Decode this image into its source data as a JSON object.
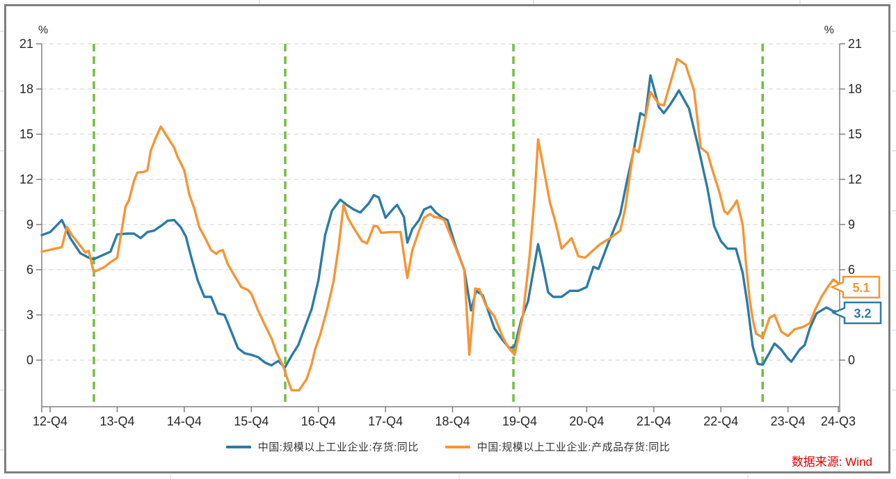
{
  "chart_data": {
    "type": "line",
    "title": "",
    "unit_left": "%",
    "unit_right": "%",
    "ylim": [
      -3,
      21
    ],
    "y_ticks": [
      21,
      18,
      15,
      12,
      9,
      6,
      3,
      0
    ],
    "grid": "horizontal-dashed",
    "legend_position": "bottom-center",
    "x_ticks": [
      {
        "q": 0,
        "label": "12-Q4"
      },
      {
        "q": 4,
        "label": "13-Q4"
      },
      {
        "q": 8,
        "label": "14-Q4"
      },
      {
        "q": 12,
        "label": "15-Q4"
      },
      {
        "q": 16,
        "label": "16-Q4"
      },
      {
        "q": 20,
        "label": "17-Q4"
      },
      {
        "q": 24,
        "label": "18-Q4"
      },
      {
        "q": 28,
        "label": "19-Q4"
      },
      {
        "q": 32,
        "label": "20-Q4"
      },
      {
        "q": 36,
        "label": "21-Q4"
      },
      {
        "q": 40,
        "label": "22-Q4"
      },
      {
        "q": 44,
        "label": "23-Q4"
      },
      {
        "q": 47,
        "label": "24-Q3"
      }
    ],
    "event_lines": {
      "color": "#70bf41",
      "style": "dashed",
      "positions_q": [
        2.61,
        14.02,
        27.63,
        42.49
      ]
    },
    "series": [
      {
        "name": "中国:规模以上工业企业:存货:同比",
        "color": "#2b7ba6",
        "end_label": "3.2",
        "points": [
          [
            -0.5,
            8.3
          ],
          [
            0,
            8.5
          ],
          [
            0.7,
            9.3
          ],
          [
            1.2,
            8.1
          ],
          [
            1.8,
            7.1
          ],
          [
            2.3,
            6.8
          ],
          [
            2.6,
            6.7
          ],
          [
            3.2,
            7.0
          ],
          [
            3.6,
            7.2
          ],
          [
            4,
            8.35
          ],
          [
            4.6,
            8.4
          ],
          [
            5,
            8.4
          ],
          [
            5.4,
            8.1
          ],
          [
            5.8,
            8.5
          ],
          [
            6.2,
            8.6
          ],
          [
            6.6,
            8.9
          ],
          [
            7,
            9.25
          ],
          [
            7.4,
            9.3
          ],
          [
            7.8,
            8.8
          ],
          [
            8.1,
            8.2
          ],
          [
            8.4,
            6.9
          ],
          [
            8.8,
            5.3
          ],
          [
            9.2,
            4.2
          ],
          [
            9.6,
            4.2
          ],
          [
            10,
            3.1
          ],
          [
            10.4,
            3.0
          ],
          [
            10.8,
            1.9
          ],
          [
            11.2,
            0.8
          ],
          [
            11.6,
            0.45
          ],
          [
            12,
            0.35
          ],
          [
            12.4,
            0.2
          ],
          [
            12.8,
            -0.15
          ],
          [
            13.2,
            -0.35
          ],
          [
            13.6,
            -0.05
          ],
          [
            14,
            -0.5
          ],
          [
            14.4,
            0.3
          ],
          [
            14.8,
            1.0
          ],
          [
            15.2,
            2.2
          ],
          [
            15.6,
            3.4
          ],
          [
            16,
            5.3
          ],
          [
            16.4,
            8.3
          ],
          [
            16.8,
            9.9
          ],
          [
            17.3,
            10.65
          ],
          [
            17.7,
            10.3
          ],
          [
            18.1,
            10.0
          ],
          [
            18.5,
            9.8
          ],
          [
            19,
            10.4
          ],
          [
            19.3,
            10.95
          ],
          [
            19.6,
            10.8
          ],
          [
            20,
            9.45
          ],
          [
            20.5,
            10.1
          ],
          [
            20.7,
            10.3
          ],
          [
            21.1,
            9.5
          ],
          [
            21.3,
            7.8
          ],
          [
            21.6,
            8.7
          ],
          [
            22,
            9.3
          ],
          [
            22.3,
            10.0
          ],
          [
            22.7,
            10.2
          ],
          [
            23,
            9.8
          ],
          [
            23.4,
            9.45
          ],
          [
            23.7,
            9.3
          ],
          [
            24.2,
            7.5
          ],
          [
            24.7,
            6.0
          ],
          [
            25.1,
            3.3
          ],
          [
            25.4,
            4.6
          ],
          [
            25.8,
            4.3
          ],
          [
            26.5,
            2.1
          ],
          [
            27,
            1.3
          ],
          [
            27.4,
            0.8
          ],
          [
            27.7,
            0.9
          ],
          [
            28.1,
            2.7
          ],
          [
            28.5,
            3.9
          ],
          [
            29.1,
            7.7
          ],
          [
            29.4,
            6.2
          ],
          [
            29.7,
            4.5
          ],
          [
            30,
            4.2
          ],
          [
            30.5,
            4.2
          ],
          [
            31,
            4.6
          ],
          [
            31.5,
            4.6
          ],
          [
            32,
            4.85
          ],
          [
            32.4,
            6.2
          ],
          [
            32.7,
            6.05
          ],
          [
            33.3,
            7.8
          ],
          [
            34,
            9.7
          ],
          [
            34.4,
            11.9
          ],
          [
            34.8,
            13.9
          ],
          [
            35.2,
            16.4
          ],
          [
            35.5,
            16.2
          ],
          [
            35.8,
            18.9
          ],
          [
            36.3,
            16.8
          ],
          [
            36.6,
            16.4
          ],
          [
            37,
            17.0
          ],
          [
            37.5,
            17.9
          ],
          [
            38.1,
            16.7
          ],
          [
            38.6,
            14.4
          ],
          [
            39.2,
            11.4
          ],
          [
            39.6,
            8.9
          ],
          [
            40,
            7.9
          ],
          [
            40.4,
            7.4
          ],
          [
            40.9,
            7.4
          ],
          [
            41.3,
            5.8
          ],
          [
            41.6,
            3.6
          ],
          [
            41.9,
            0.9
          ],
          [
            42.2,
            -0.25
          ],
          [
            42.5,
            -0.3
          ],
          [
            42.9,
            0.5
          ],
          [
            43.2,
            1.1
          ],
          [
            43.6,
            0.7
          ],
          [
            44,
            0.1
          ],
          [
            44.2,
            -0.1
          ],
          [
            44.7,
            0.7
          ],
          [
            45,
            1.0
          ],
          [
            45.3,
            2.1
          ],
          [
            45.7,
            3.1
          ],
          [
            46.3,
            3.5
          ],
          [
            46.7,
            3.25
          ],
          [
            47,
            3.2
          ]
        ]
      },
      {
        "name": "中国:规模以上工业企业:产成品存货:同比",
        "color": "#f79433",
        "end_label": "5.1",
        "points": [
          [
            -0.5,
            7.2
          ],
          [
            0.3,
            7.4
          ],
          [
            0.7,
            7.5
          ],
          [
            1.0,
            8.85
          ],
          [
            1.3,
            8.3
          ],
          [
            1.8,
            7.6
          ],
          [
            2.1,
            7.15
          ],
          [
            2.3,
            7.25
          ],
          [
            2.6,
            5.85
          ],
          [
            2.9,
            6.0
          ],
          [
            3.2,
            6.15
          ],
          [
            3.6,
            6.5
          ],
          [
            4,
            6.8
          ],
          [
            4.5,
            10.2
          ],
          [
            4.7,
            10.6
          ],
          [
            5,
            11.9
          ],
          [
            5.2,
            12.45
          ],
          [
            5.6,
            12.5
          ],
          [
            5.8,
            12.6
          ],
          [
            6,
            13.9
          ],
          [
            6.3,
            14.75
          ],
          [
            6.6,
            15.5
          ],
          [
            7,
            14.8
          ],
          [
            7.4,
            14.1
          ],
          [
            7.6,
            13.5
          ],
          [
            8,
            12.6
          ],
          [
            8.3,
            11.0
          ],
          [
            8.6,
            10.05
          ],
          [
            8.9,
            8.8
          ],
          [
            9.2,
            8.2
          ],
          [
            9.6,
            7.3
          ],
          [
            9.9,
            7.05
          ],
          [
            10.1,
            7.25
          ],
          [
            10.3,
            7.3
          ],
          [
            10.6,
            6.35
          ],
          [
            11,
            5.6
          ],
          [
            11.4,
            4.85
          ],
          [
            11.8,
            4.65
          ],
          [
            12,
            4.4
          ],
          [
            12.4,
            3.3
          ],
          [
            12.8,
            2.35
          ],
          [
            13.2,
            1.45
          ],
          [
            13.5,
            0.5
          ],
          [
            13.9,
            -0.4
          ],
          [
            14.15,
            -1.25
          ],
          [
            14.4,
            -2.0
          ],
          [
            14.85,
            -2.0
          ],
          [
            15.3,
            -1.25
          ],
          [
            15.6,
            -0.25
          ],
          [
            15.8,
            0.7
          ],
          [
            16.1,
            1.65
          ],
          [
            16.5,
            3.3
          ],
          [
            16.9,
            5.2
          ],
          [
            17.2,
            7.5
          ],
          [
            17.5,
            10.3
          ],
          [
            17.75,
            9.45
          ],
          [
            18.2,
            8.6
          ],
          [
            18.6,
            7.9
          ],
          [
            18.9,
            7.75
          ],
          [
            19.3,
            8.9
          ],
          [
            19.5,
            8.9
          ],
          [
            19.75,
            8.45
          ],
          [
            20.3,
            8.5
          ],
          [
            20.9,
            8.5
          ],
          [
            21.3,
            5.45
          ],
          [
            21.6,
            7.3
          ],
          [
            22,
            8.6
          ],
          [
            22.3,
            9.45
          ],
          [
            22.65,
            9.7
          ],
          [
            22.9,
            9.5
          ],
          [
            23.2,
            9.45
          ],
          [
            23.5,
            9.3
          ],
          [
            24.2,
            7.4
          ],
          [
            24.7,
            6.0
          ],
          [
            25,
            0.37
          ],
          [
            25.35,
            4.75
          ],
          [
            25.6,
            4.7
          ],
          [
            26,
            3.6
          ],
          [
            26.5,
            2.9
          ],
          [
            27,
            1.5
          ],
          [
            27.3,
            0.9
          ],
          [
            27.7,
            0.35
          ],
          [
            28.2,
            3.0
          ],
          [
            28.6,
            7.0
          ],
          [
            28.9,
            11.0
          ],
          [
            29.1,
            14.65
          ],
          [
            29.3,
            13.5
          ],
          [
            29.8,
            10.5
          ],
          [
            30.1,
            9.3
          ],
          [
            30.3,
            8.4
          ],
          [
            30.5,
            7.4
          ],
          [
            31.1,
            8.1
          ],
          [
            31.5,
            6.9
          ],
          [
            31.9,
            6.8
          ],
          [
            32.3,
            7.2
          ],
          [
            32.8,
            7.7
          ],
          [
            33.4,
            8.1
          ],
          [
            34,
            8.6
          ],
          [
            34.3,
            10.1
          ],
          [
            34.8,
            14.05
          ],
          [
            35.1,
            13.8
          ],
          [
            35.8,
            17.8
          ],
          [
            36.3,
            17.0
          ],
          [
            36.6,
            16.9
          ],
          [
            37.4,
            20.0
          ],
          [
            37.9,
            19.6
          ],
          [
            38.4,
            17.9
          ],
          [
            38.8,
            14.1
          ],
          [
            39.2,
            13.75
          ],
          [
            39.5,
            12.6
          ],
          [
            39.9,
            11.2
          ],
          [
            40.2,
            9.9
          ],
          [
            40.4,
            9.7
          ],
          [
            40.8,
            10.3
          ],
          [
            40.95,
            10.6
          ],
          [
            41.3,
            9.0
          ],
          [
            41.5,
            6.4
          ],
          [
            41.7,
            4.2
          ],
          [
            41.9,
            2.7
          ],
          [
            42.1,
            1.75
          ],
          [
            42.5,
            1.5
          ],
          [
            42.9,
            2.8
          ],
          [
            43.2,
            3.0
          ],
          [
            43.6,
            1.9
          ],
          [
            44,
            1.6
          ],
          [
            44.4,
            2.05
          ],
          [
            44.9,
            2.2
          ],
          [
            45.3,
            2.45
          ],
          [
            45.6,
            3.3
          ],
          [
            46,
            4.2
          ],
          [
            46.4,
            4.9
          ],
          [
            46.7,
            5.35
          ],
          [
            47,
            5.1
          ]
        ]
      }
    ],
    "source_note": "数据来源: Wind",
    "colors": {
      "grid": "#d9d9d9",
      "axis": "#808080",
      "tick_text": "#262626",
      "frame_border": "#7f7f7f",
      "source_text": "#e10000"
    }
  }
}
